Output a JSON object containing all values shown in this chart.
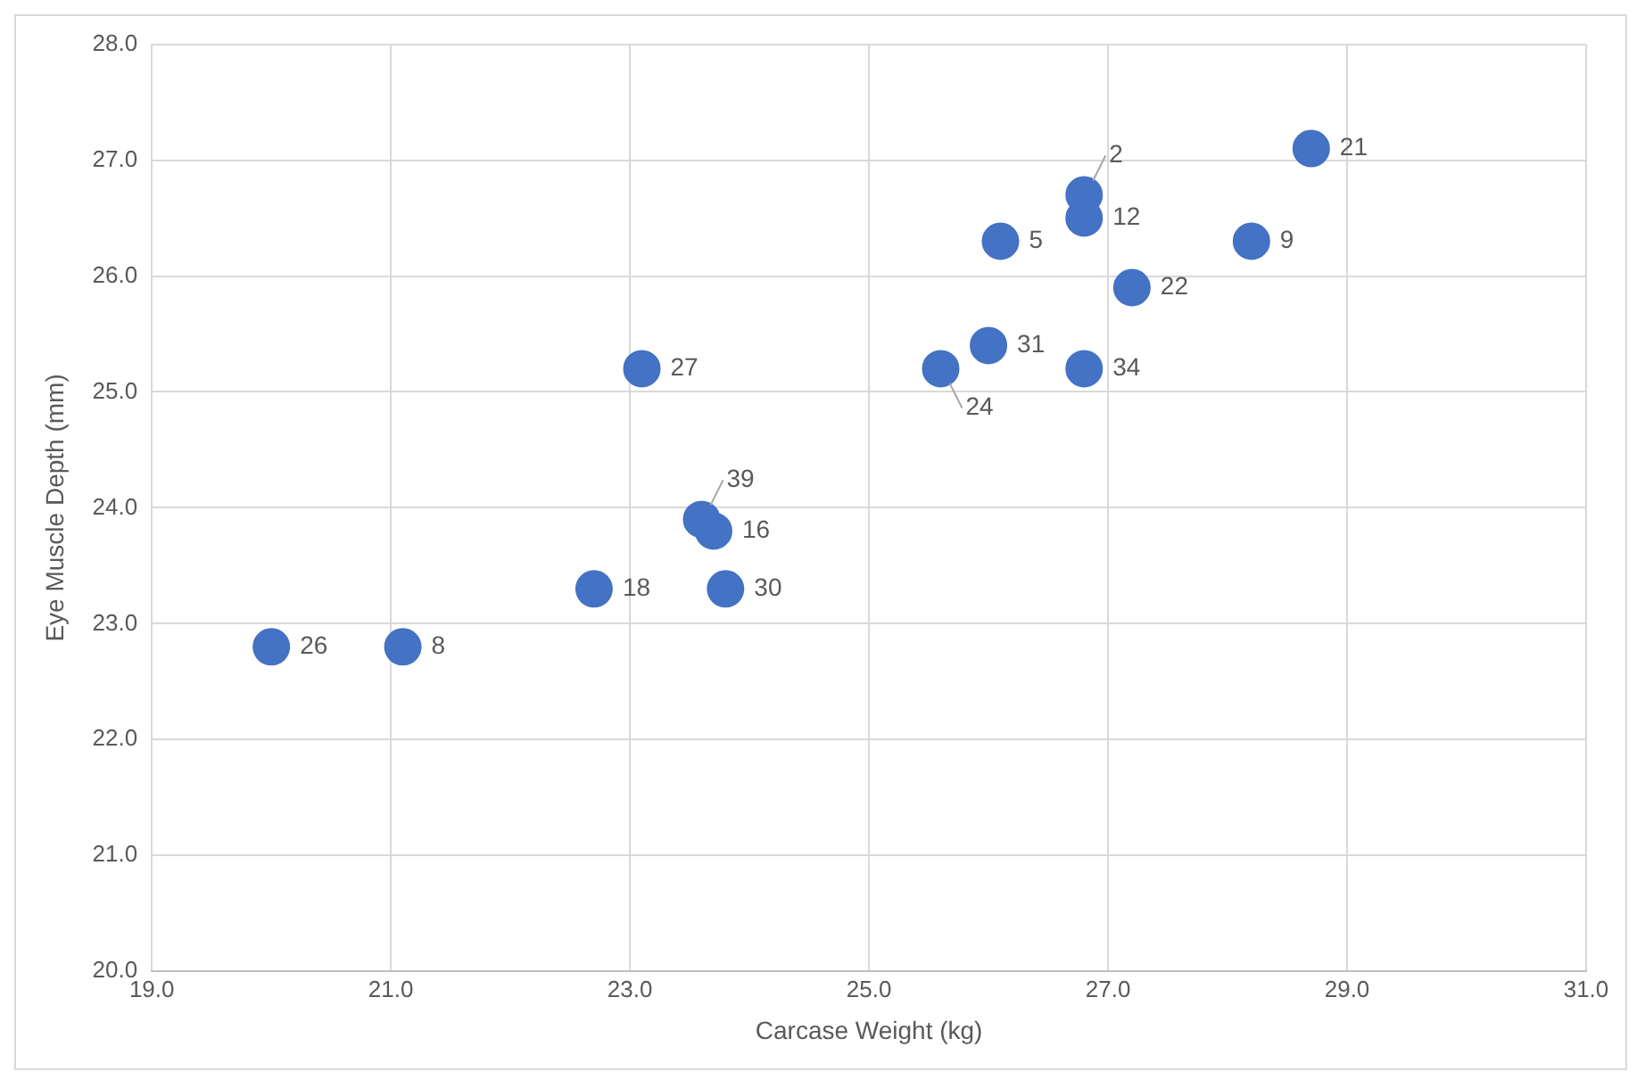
{
  "chart_data": {
    "type": "scatter",
    "xlabel": "Carcase Weight (kg)",
    "ylabel": "Eye Muscle Depth (mm)",
    "x": [
      20.0,
      21.1,
      22.7,
      23.8,
      23.6,
      23.7,
      23.1,
      25.6,
      26.0,
      26.8,
      26.1,
      26.8,
      26.8,
      27.2,
      28.2,
      28.7
    ],
    "series": [
      {
        "color": "#4472c4",
        "values": [
          22.8,
          22.8,
          23.3,
          23.3,
          23.9,
          23.8,
          25.2,
          25.2,
          25.4,
          25.2,
          26.3,
          26.7,
          26.5,
          25.9,
          26.3,
          27.1
        ]
      }
    ],
    "annotations": [
      {
        "text": "26",
        "x": 20.0,
        "y": 22.8
      },
      {
        "text": "8",
        "x": 21.1,
        "y": 22.8
      },
      {
        "text": "18",
        "x": 22.7,
        "y": 23.3
      },
      {
        "text": "30",
        "x": 23.8,
        "y": 23.3
      },
      {
        "text": "39",
        "x": 23.6,
        "y": 23.9
      },
      {
        "text": "16",
        "x": 23.7,
        "y": 23.8
      },
      {
        "text": "27",
        "x": 23.1,
        "y": 25.2
      },
      {
        "text": "24",
        "x": 25.6,
        "y": 25.2
      },
      {
        "text": "31",
        "x": 26.0,
        "y": 25.4
      },
      {
        "text": "34",
        "x": 26.8,
        "y": 25.2
      },
      {
        "text": "5",
        "x": 26.1,
        "y": 26.3
      },
      {
        "text": "2",
        "x": 26.8,
        "y": 26.7
      },
      {
        "text": "12",
        "x": 26.8,
        "y": 26.5
      },
      {
        "text": "22",
        "x": 27.2,
        "y": 25.9
      },
      {
        "text": "9",
        "x": 28.2,
        "y": 26.3
      },
      {
        "text": "21",
        "x": 28.7,
        "y": 27.1
      }
    ],
    "xlim": [
      19,
      31
    ],
    "xticks": [
      {
        "value": 19,
        "label": "19.0"
      },
      {
        "value": 21,
        "label": "21.0"
      },
      {
        "value": 23,
        "label": "23.0"
      },
      {
        "value": 25,
        "label": "25.0"
      },
      {
        "value": 27,
        "label": "27.0"
      },
      {
        "value": 29,
        "label": "29.0"
      },
      {
        "value": 31,
        "label": "31.0"
      }
    ],
    "ylim": [
      20,
      28
    ],
    "yticks": [
      {
        "value": 20,
        "label": "20.0"
      },
      {
        "value": 21,
        "label": "21.0"
      },
      {
        "value": 22,
        "label": "22.0"
      },
      {
        "value": 23,
        "label": "23.0"
      },
      {
        "value": 24,
        "label": "24.0"
      },
      {
        "value": 25,
        "label": "25.0"
      },
      {
        "value": 26,
        "label": "26.0"
      },
      {
        "value": 27,
        "label": "27.0"
      },
      {
        "value": 28,
        "label": "28.0"
      }
    ],
    "grid": true,
    "legend": false,
    "marker": "circle"
  }
}
